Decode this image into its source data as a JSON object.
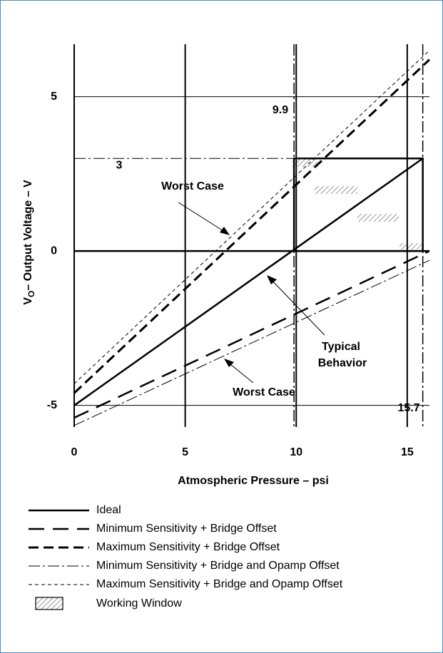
{
  "chart_data": {
    "type": "line",
    "x_label": "Atmospheric Pressure – psi",
    "y_label": [
      "V",
      "O",
      "– Output Voltage – V"
    ],
    "xlim": [
      0,
      16
    ],
    "ylim": [
      -5.7,
      6.7
    ],
    "xticks": [
      0,
      5,
      10,
      15
    ],
    "yticks": [
      -5,
      0,
      5
    ],
    "grid": true,
    "series": [
      {
        "name": "Ideal",
        "color": "#000000",
        "style": "solid",
        "x": [
          0,
          15.7
        ],
        "values": [
          -5,
          3
        ]
      },
      {
        "name": "Minimum Sensitivity + Bridge Offset",
        "color": "#000000",
        "style": "long-dash",
        "x": [
          0,
          16
        ],
        "values": [
          -5.4,
          0
        ]
      },
      {
        "name": "Maximum Sensitivity + Bridge Offset",
        "color": "#000000",
        "style": "dash",
        "x": [
          0,
          16
        ],
        "values": [
          -4.6,
          6.2
        ]
      },
      {
        "name": "Minimum Sensitivity + Bridge and Opamp Offset",
        "color": "#000000",
        "style": "dash-dot",
        "x": [
          0,
          16
        ],
        "values": [
          -5.65,
          -0.3
        ]
      },
      {
        "name": "Maximum Sensitivity + Bridge and Opamp Offset",
        "color": "#000000",
        "style": "short-dash",
        "x": [
          0,
          16
        ],
        "values": [
          -4.3,
          6.5
        ]
      }
    ],
    "markers": {
      "x": [
        9.9,
        15.7
      ],
      "y": [
        3
      ]
    },
    "window_label": "Working Window",
    "annotations": {
      "worst_case_top": "Worst Case",
      "worst_case_bottom": "Worst Case",
      "typical": [
        "Typical",
        "Behavior"
      ]
    }
  }
}
